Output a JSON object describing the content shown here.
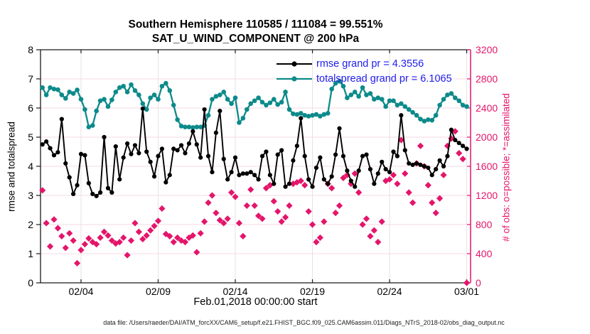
{
  "title": {
    "line1": "Southern Hemisphere 110585 / 111084 = 99.551%",
    "line2": "SAT_U_WIND_COMPONENT @ 200 hPa"
  },
  "axes": {
    "left_label": "rmse and totalspread",
    "right_label": "# of obs: o=possible; *=assimilated",
    "x_label": "Feb.01,2018 00:00:00 start"
  },
  "legend": [
    {
      "label": "rmse grand pr = 4.3556",
      "series": "rmse"
    },
    {
      "label": "totalspread grand pr = 6.1065",
      "series": "totalspread"
    }
  ],
  "footer": "data file: /Users/raeder/DAI/ATM_forcXX/CAM6_setup/f.e21.FHIST_BGC.f09_025.CAM6assim.011/Diags_NTrS_2018-02/obs_diag_output.nc",
  "colors": {
    "rmse": "#000000",
    "totalspread": "#0d8a8a",
    "obs": "#e4156b",
    "legend_text": "#1e1ef0",
    "grid_horizontal": "#f6dae5",
    "grid_vertical": "#e9e0e4",
    "spine": "#1a1a1a"
  },
  "chart_data": {
    "type": "line",
    "title": "Southern Hemisphere 110585 / 111084 = 99.551% — SAT_U_WIND_COMPONENT @ 200 hPa",
    "x_axis": {
      "label": "Feb.01,2018 00:00:00 start",
      "range_days": [
        1.375,
        29.25
      ],
      "ticks": [
        {
          "day": 4,
          "label": "02/04"
        },
        {
          "day": 9,
          "label": "02/09"
        },
        {
          "day": 14,
          "label": "02/14"
        },
        {
          "day": 19,
          "label": "02/19"
        },
        {
          "day": 24,
          "label": "02/24"
        },
        {
          "day": 29,
          "label": "03/01"
        }
      ]
    },
    "y_left": {
      "label": "rmse and totalspread",
      "min": 0,
      "max": 8,
      "tick_step": 1
    },
    "y_right": {
      "label": "# of obs: o=possible; *=assimilated",
      "min": 0,
      "max": 3200,
      "tick_step": 400
    },
    "x_start_day": 1.5,
    "x_step_days": 0.25,
    "grid": true,
    "legend_position": "top-right-inside",
    "series": [
      {
        "name": "rmse",
        "axis": "left",
        "style": "line-circle",
        "grand_value": 4.3556,
        "values": [
          4.75,
          4.85,
          4.62,
          4.38,
          4.48,
          5.62,
          4.1,
          3.62,
          3.05,
          3.35,
          4.42,
          4.38,
          3.42,
          3.05,
          2.98,
          3.1,
          5.0,
          3.25,
          3.1,
          4.68,
          3.55,
          4.3,
          4.78,
          4.42,
          4.72,
          4.45,
          5.98,
          4.5,
          4.15,
          3.65,
          4.35,
          4.6,
          3.45,
          3.7,
          4.6,
          4.55,
          4.72,
          4.45,
          4.78,
          5.2,
          4.75,
          4.3,
          5.95,
          4.35,
          3.8,
          5.15,
          5.9,
          4.25,
          3.55,
          3.8,
          4.3,
          3.7,
          3.75,
          3.75,
          3.8,
          3.7,
          3.55,
          4.35,
          4.5,
          3.7,
          3.4,
          4.4,
          4.55,
          3.3,
          3.4,
          4.2,
          4.7,
          5.65,
          4.35,
          3.55,
          3.3,
          3.95,
          4.3,
          3.55,
          3.4,
          3.65,
          4.4,
          5.3,
          4.35,
          3.85,
          3.5,
          3.3,
          3.85,
          4.35,
          4.4,
          3.9,
          3.4,
          3.75,
          4.15,
          3.9,
          3.8,
          4.5,
          4.35,
          5.75,
          4.55,
          4.1,
          4.05,
          4.1,
          4.05,
          4.0,
          3.95,
          3.7,
          3.9,
          4.2,
          4.0,
          4.35,
          5.25,
          4.9,
          4.8,
          4.7,
          4.6
        ]
      },
      {
        "name": "totalspread",
        "axis": "left",
        "style": "line-circle",
        "grand_value": 6.1065,
        "values": [
          6.7,
          6.45,
          6.7,
          6.65,
          6.63,
          6.45,
          6.33,
          6.55,
          6.5,
          6.62,
          6.3,
          5.95,
          5.35,
          5.4,
          5.9,
          6.25,
          6.3,
          6.05,
          6.28,
          6.55,
          6.7,
          6.75,
          6.55,
          6.8,
          6.6,
          6.45,
          6.15,
          5.95,
          6.35,
          6.45,
          6.3,
          6.75,
          6.85,
          6.6,
          6.1,
          5.6,
          5.38,
          5.35,
          5.35,
          5.33,
          5.35,
          5.35,
          5.4,
          5.75,
          6.3,
          6.4,
          6.45,
          6.55,
          6.3,
          6.15,
          6.35,
          5.5,
          5.65,
          5.95,
          6.15,
          6.25,
          6.35,
          6.2,
          6.1,
          6.18,
          6.3,
          6.12,
          6.2,
          6.55,
          5.95,
          5.8,
          5.78,
          5.82,
          5.75,
          5.72,
          5.75,
          5.78,
          5.72,
          5.78,
          5.82,
          6.65,
          6.85,
          6.92,
          6.75,
          6.35,
          6.45,
          6.55,
          6.4,
          6.7,
          6.45,
          6.5,
          6.3,
          6.35,
          6.3,
          6.05,
          6.25,
          6.25,
          6.1,
          6.15,
          6.05,
          5.95,
          5.85,
          5.75,
          5.62,
          5.55,
          5.6,
          5.58,
          5.75,
          6.1,
          6.3,
          6.45,
          6.5,
          6.35,
          6.25,
          6.1,
          6.05
        ]
      },
      {
        "name": "observations_assimilated",
        "axis": "right",
        "style": "diamond-marker",
        "values": [
          1270,
          820,
          500,
          870,
          750,
          640,
          480,
          680,
          580,
          270,
          450,
          530,
          610,
          560,
          530,
          620,
          700,
          650,
          580,
          540,
          560,
          620,
          380,
          580,
          820,
          700,
          600,
          650,
          720,
          780,
          850,
          1020,
          670,
          640,
          560,
          620,
          580,
          560,
          620,
          650,
          420,
          680,
          840,
          1100,
          1200,
          960,
          860,
          820,
          880,
          1240,
          1180,
          820,
          640,
          1060,
          1280,
          1060,
          920,
          880,
          1300,
          1340,
          1120,
          980,
          840,
          900,
          1060,
          1360,
          1380,
          1400,
          1340,
          980,
          800,
          560,
          620,
          840,
          1360,
          1300,
          960,
          1060,
          1440,
          1480,
          1360,
          1500,
          1240,
          800,
          880,
          640,
          720,
          560,
          840,
          1400,
          1420,
          1480,
          1360,
          1960,
          1500,
          1240,
          1100,
          1640,
          1880,
          1600,
          1340,
          1100,
          960,
          1160,
          1480,
          1880,
          1980,
          2080,
          1780,
          1700,
          0
        ]
      }
    ]
  }
}
